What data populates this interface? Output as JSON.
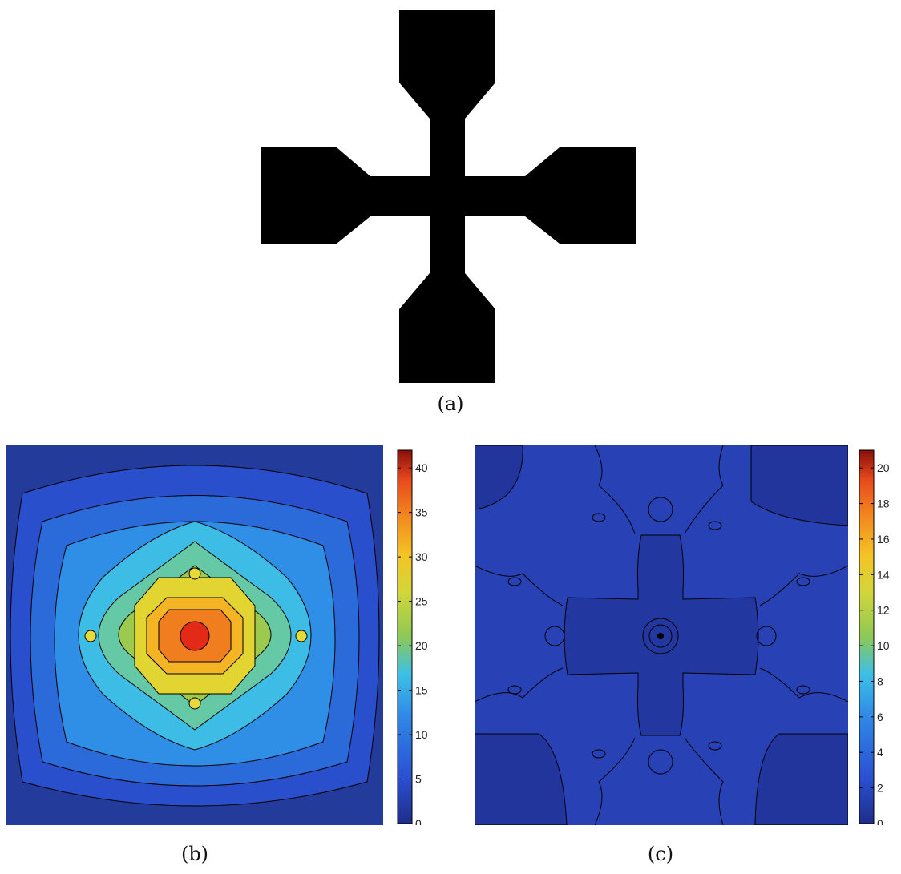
{
  "figure": {
    "panels": [
      {
        "id": "a",
        "caption": "(a)",
        "description_type": "geometry"
      },
      {
        "id": "b",
        "caption": "(b)"
      },
      {
        "id": "c",
        "caption": "(c)"
      }
    ]
  },
  "chart_data": [
    {
      "type": "heatmap",
      "panel": "(b)",
      "colorbar": {
        "min": 0,
        "max": 42,
        "ticks": [
          "0",
          "5",
          "10",
          "15",
          "20",
          "25",
          "30",
          "35",
          "40"
        ]
      },
      "contour_levels": [
        5,
        10,
        15,
        20,
        25,
        30,
        35,
        40
      ],
      "colormap": [
        "#1f2d8a",
        "#2a4fd0",
        "#2f86e6",
        "#3bc0e8",
        "#5cc8b4",
        "#8dc855",
        "#d2d63a",
        "#f5c325",
        "#f28a1f",
        "#e84a1c",
        "#c41b12",
        "#8a0f0a"
      ]
    },
    {
      "type": "heatmap",
      "panel": "(c)",
      "colorbar": {
        "min": 0,
        "max": 21,
        "ticks": [
          "0",
          "2",
          "4",
          "6",
          "8",
          "10",
          "12",
          "14",
          "16",
          "18",
          "20"
        ]
      },
      "colormap": [
        "#1f2d8a",
        "#2a4fd0",
        "#2f86e6",
        "#3bc0e8",
        "#5cc8b4",
        "#8dc855",
        "#d2d63a",
        "#f5c325",
        "#f28a1f",
        "#e84a1c",
        "#c41b12",
        "#8a0f0a"
      ]
    }
  ]
}
